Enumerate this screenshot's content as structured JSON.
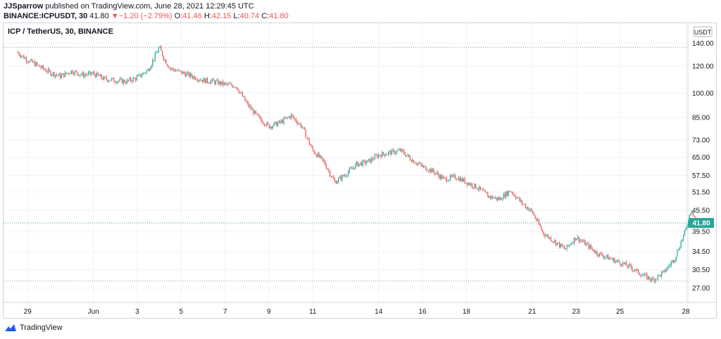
{
  "header": {
    "author": "JJSparrow",
    "published_text": " published on TradingView.com, June 28, 2021 12:29:45 UTC",
    "symbol_line": "BINANCE:ICPUSDT, 30",
    "last_price": "41.80",
    "change_arrow": "▼",
    "change": "−1.20 (−2.79%)",
    "o_label": "O:",
    "o_value": "41.46",
    "h_label": "H:",
    "h_value": "42.15",
    "l_label": "L:",
    "l_value": "40.74",
    "c_label": "C:",
    "c_value": "41.80"
  },
  "footer": {
    "brand": "TradingView"
  },
  "colors": {
    "up": "#26a69a",
    "down": "#ef5350",
    "badge": "#26a69a",
    "grid": "#f0f3fa"
  },
  "chart_data": {
    "type": "line",
    "title": "ICP / TetherUS, 30, BINANCE",
    "currency_label": "USDT",
    "y_scale": "log",
    "ylim": [
      24.5,
      160
    ],
    "y_ticks": [
      140,
      120,
      100,
      85,
      73,
      65,
      57.5,
      51.5,
      45.5,
      39.5,
      34.5,
      30.5,
      27
    ],
    "y_tick_labels": [
      "140.00",
      "120.00",
      "100.00",
      "85.00",
      "73.00",
      "65.00",
      "57.50",
      "51.50",
      "45.50",
      "39.50",
      "34.50",
      "30.50",
      "27.00"
    ],
    "x_ticks": [
      "29",
      "Jun",
      "3",
      "5",
      "7",
      "9",
      "11",
      "14",
      "16",
      "18",
      "21",
      "23",
      "25",
      "28"
    ],
    "last_value_label": "41.80",
    "last_value": 41.8,
    "high_line": 136,
    "low_line": 28.3,
    "grid": true,
    "series": [
      {
        "x": [
          "May 28 12:00",
          "May 29 00:00",
          "May 29 12:00",
          "May 30 00:00",
          "May 30 12:00",
          "May 31 00:00",
          "May 31 12:00",
          "Jun 1 00:00",
          "Jun 1 12:00",
          "Jun 2 00:00",
          "Jun 2 12:00",
          "Jun 3 00:00",
          "Jun 3 12:00",
          "Jun 4 00:00",
          "Jun 4 06:00",
          "Jun 4 12:00",
          "Jun 5 00:00",
          "Jun 5 12:00",
          "Jun 6 00:00",
          "Jun 6 12:00",
          "Jun 7 00:00",
          "Jun 7 12:00",
          "Jun 8 00:00",
          "Jun 8 12:00",
          "Jun 9 00:00",
          "Jun 9 12:00",
          "Jun 10 00:00",
          "Jun 10 12:00",
          "Jun 11 00:00",
          "Jun 11 12:00",
          "Jun 12 00:00",
          "Jun 12 12:00",
          "Jun 13 00:00",
          "Jun 13 12:00",
          "Jun 14 00:00",
          "Jun 14 12:00",
          "Jun 15 00:00",
          "Jun 15 12:00",
          "Jun 16 00:00",
          "Jun 16 12:00",
          "Jun 17 00:00",
          "Jun 17 12:00",
          "Jun 18 00:00",
          "Jun 18 12:00",
          "Jun 19 00:00",
          "Jun 19 12:00",
          "Jun 20 00:00",
          "Jun 20 12:00",
          "Jun 21 00:00",
          "Jun 21 12:00",
          "Jun 22 00:00",
          "Jun 22 12:00",
          "Jun 23 00:00",
          "Jun 23 12:00",
          "Jun 24 00:00",
          "Jun 24 12:00",
          "Jun 25 00:00",
          "Jun 25 12:00",
          "Jun 26 00:00",
          "Jun 26 12:00",
          "Jun 27 00:00",
          "Jun 27 12:00",
          "Jun 28 00:00",
          "Jun 28 06:00",
          "Jun 28 12:00"
        ],
        "values": [
          132,
          125,
          120,
          115,
          112,
          116,
          113,
          114,
          110,
          109,
          108,
          111,
          117,
          136,
          125,
          118,
          115,
          112,
          109,
          108,
          106,
          105,
          93,
          85,
          80,
          82,
          86,
          80,
          68,
          63,
          55,
          58,
          62,
          63,
          66,
          67,
          68,
          64,
          61,
          59,
          56,
          57,
          55,
          53,
          50,
          49,
          52,
          48,
          45,
          39,
          37,
          35,
          38,
          36,
          34,
          33,
          32,
          31,
          29.5,
          28.5,
          30,
          33,
          40,
          46,
          41.8
        ]
      }
    ]
  }
}
